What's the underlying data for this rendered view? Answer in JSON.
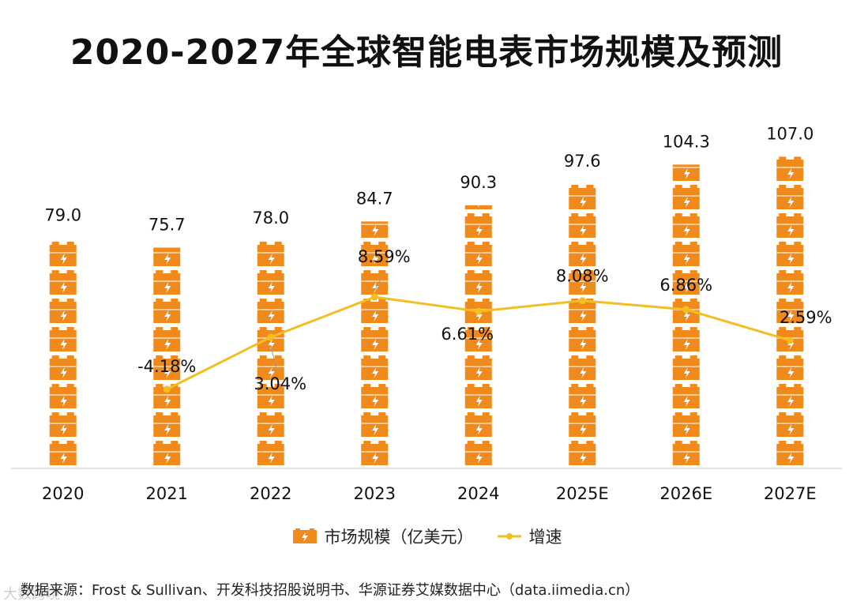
{
  "title": "2020-2027年全球智能电表市场规模及预测",
  "chart_data": {
    "type": "bar",
    "title": "2020-2027年全球智能电表市场规模及预测",
    "categories": [
      "2020",
      "2021",
      "2022",
      "2023",
      "2024",
      "2025E",
      "2026E",
      "2027E"
    ],
    "series": [
      {
        "name": "市场规模（亿美元）",
        "type": "bar",
        "values": [
          79.0,
          75.7,
          78.0,
          84.7,
          90.3,
          97.6,
          104.3,
          107.0
        ]
      },
      {
        "name": "增速",
        "type": "line",
        "unit": "%",
        "values": [
          null,
          -4.18,
          3.04,
          8.59,
          6.61,
          8.08,
          6.86,
          2.59
        ]
      }
    ],
    "bar_labels": [
      "79.0",
      "75.7",
      "78.0",
      "84.7",
      "90.3",
      "97.6",
      "104.3",
      "107.0"
    ],
    "line_labels": [
      "",
      "-4.18%",
      "3.04%",
      "8.59%",
      "6.61%",
      "8.08%",
      "6.86%",
      "2.59%"
    ],
    "bar_ylim": [
      0,
      112
    ],
    "line_ylim": [
      -15,
      30
    ],
    "xlabel": "",
    "ylabel": "",
    "grid": false,
    "legend_position": "bottom"
  },
  "legend": {
    "bar_label": "市场规模（亿美元）",
    "line_label": "增速"
  },
  "source": "数据来源：Frost & Sullivan、开发科技招股说明书、华源证券艾媒数据中心（data.iimedia.cn）",
  "watermark": "大数跨境",
  "colors": {
    "bar": "#F08A1C",
    "line": "#F2BE22",
    "text": "#111111",
    "axis": "#D9D9D9"
  }
}
